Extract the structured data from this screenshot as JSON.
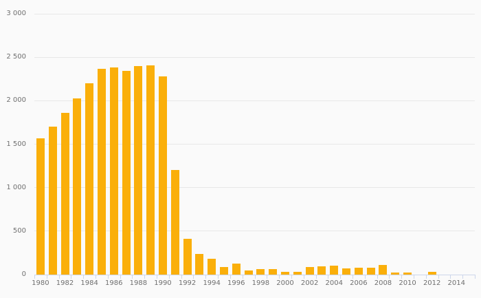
{
  "chart_data": {
    "type": "bar",
    "title": "",
    "xlabel": "",
    "ylabel": "",
    "legend": "none",
    "grid": "horizontal",
    "background_color": "#fafafa",
    "bar_color": "#faaf0a",
    "gridline_color": "#e7e7e7",
    "axis_color": "#ccd6eb",
    "label_color": "#6f6f6f",
    "ylim": [
      0,
      3000
    ],
    "x": [
      1980,
      1981,
      1982,
      1983,
      1984,
      1985,
      1986,
      1987,
      1988,
      1989,
      1990,
      1991,
      1992,
      1993,
      1994,
      1995,
      1996,
      1997,
      1998,
      1999,
      2000,
      2001,
      2002,
      2003,
      2004,
      2005,
      2006,
      2007,
      2008,
      2009,
      2010,
      2011,
      2012,
      2013,
      2014,
      2015
    ],
    "values": [
      1570,
      1700,
      1860,
      2030,
      2200,
      2370,
      2380,
      2340,
      2400,
      2410,
      2280,
      1200,
      410,
      240,
      185,
      90,
      130,
      50,
      65,
      65,
      35,
      30,
      90,
      95,
      100,
      75,
      80,
      80,
      110,
      20,
      20,
      0,
      30,
      0,
      0,
      0
    ],
    "y_ticks": [
      {
        "value": 0,
        "label": "0"
      },
      {
        "value": 500,
        "label": "500"
      },
      {
        "value": 1000,
        "label": "1 000"
      },
      {
        "value": 1500,
        "label": "1 500"
      },
      {
        "value": 2000,
        "label": "2 000"
      },
      {
        "value": 2500,
        "label": "2 500"
      },
      {
        "value": 3000,
        "label": "3 000"
      }
    ],
    "x_tick_labels": [
      "1980",
      "1982",
      "1984",
      "1986",
      "1988",
      "1990",
      "1992",
      "1994",
      "1996",
      "1998",
      "2000",
      "2002",
      "2004",
      "2006",
      "2008",
      "2010",
      "2012",
      "2014"
    ]
  }
}
